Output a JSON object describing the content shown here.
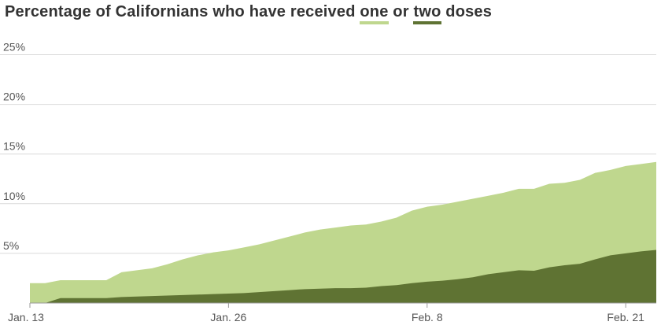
{
  "chart_data": {
    "type": "area",
    "title_parts": {
      "before": "Percentage of Californians who have received ",
      "one": "one",
      "middle": " or ",
      "two": "two",
      "after": " doses"
    },
    "x_ticks": [
      "Jan. 13",
      "Jan. 26",
      "Feb. 8",
      "Feb. 21"
    ],
    "y_ticks": [
      "5%",
      "10%",
      "15%",
      "20%",
      "25%"
    ],
    "ylim": [
      0,
      25
    ],
    "grid": true,
    "x": [
      "Jan. 13",
      "Jan. 14",
      "Jan. 15",
      "Jan. 16",
      "Jan. 17",
      "Jan. 18",
      "Jan. 19",
      "Jan. 20",
      "Jan. 21",
      "Jan. 22",
      "Jan. 23",
      "Jan. 24",
      "Jan. 25",
      "Jan. 26",
      "Jan. 27",
      "Jan. 28",
      "Jan. 29",
      "Jan. 30",
      "Jan. 31",
      "Feb. 1",
      "Feb. 2",
      "Feb. 3",
      "Feb. 4",
      "Feb. 5",
      "Feb. 6",
      "Feb. 7",
      "Feb. 8",
      "Feb. 9",
      "Feb. 10",
      "Feb. 11",
      "Feb. 12",
      "Feb. 13",
      "Feb. 14",
      "Feb. 15",
      "Feb. 16",
      "Feb. 17",
      "Feb. 18",
      "Feb. 19",
      "Feb. 20",
      "Feb. 21",
      "Feb. 22",
      "Feb. 23"
    ],
    "series": [
      {
        "key": "one",
        "color": "#bfd78e",
        "values": [
          2.0,
          2.0,
          2.3,
          2.3,
          2.3,
          2.3,
          3.1,
          3.3,
          3.5,
          3.9,
          4.4,
          4.8,
          5.1,
          5.3,
          5.6,
          5.9,
          6.3,
          6.7,
          7.1,
          7.4,
          7.6,
          7.8,
          7.9,
          8.2,
          8.6,
          9.3,
          9.7,
          9.9,
          10.2,
          10.5,
          10.8,
          11.1,
          11.5,
          11.5,
          12.0,
          12.1,
          12.4,
          13.1,
          13.4,
          13.8,
          14.0,
          14.2
        ]
      },
      {
        "key": "two",
        "color": "#5f7333",
        "values": [
          0.0,
          0.0,
          0.5,
          0.5,
          0.5,
          0.5,
          0.6,
          0.65,
          0.7,
          0.75,
          0.8,
          0.85,
          0.9,
          0.95,
          1.0,
          1.1,
          1.2,
          1.3,
          1.4,
          1.45,
          1.5,
          1.5,
          1.55,
          1.7,
          1.8,
          2.0,
          2.15,
          2.25,
          2.4,
          2.6,
          2.9,
          3.1,
          3.3,
          3.25,
          3.6,
          3.8,
          3.95,
          4.4,
          4.8,
          5.0,
          5.2,
          5.35
        ]
      }
    ]
  }
}
